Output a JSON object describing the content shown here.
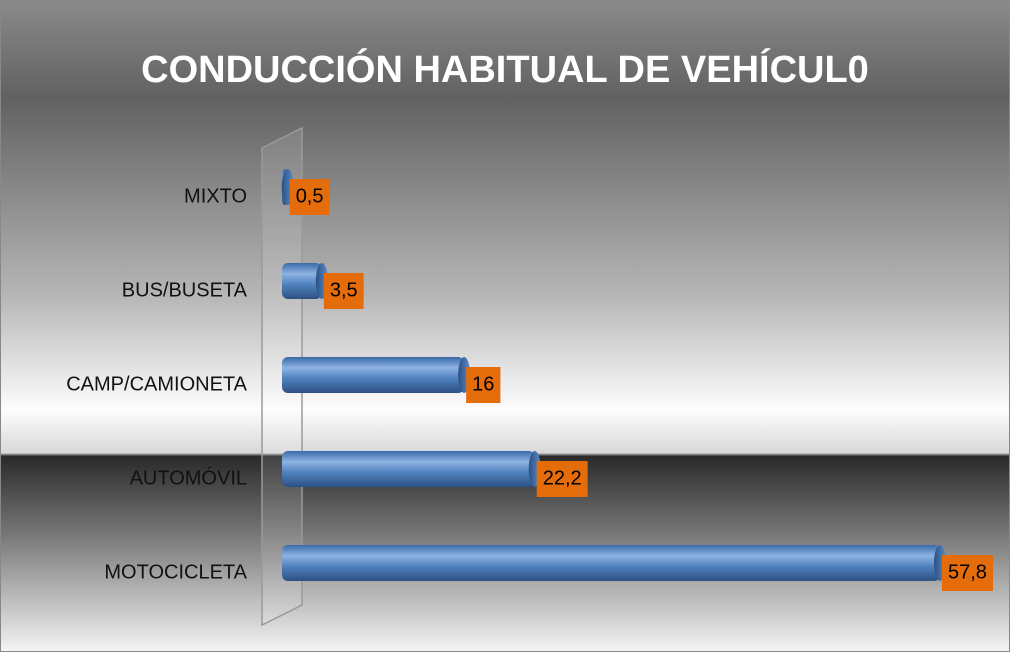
{
  "chart_data": {
    "type": "bar",
    "orientation": "horizontal",
    "title": "CONDUCCIÓN HABITUAL DE VEHÍCUL0",
    "categories": [
      "MIXTO",
      "BUS/BUSETA",
      "CAMP/CAMIONETA",
      "AUTOMÓVIL",
      "MOTOCICLETA"
    ],
    "values": [
      0.5,
      3.5,
      16,
      22.2,
      57.8
    ],
    "value_labels": [
      "0,5",
      "3,5",
      "16",
      "22,2",
      "57,8"
    ],
    "color": "#4f81bd",
    "label_color": "#e46c0a"
  }
}
